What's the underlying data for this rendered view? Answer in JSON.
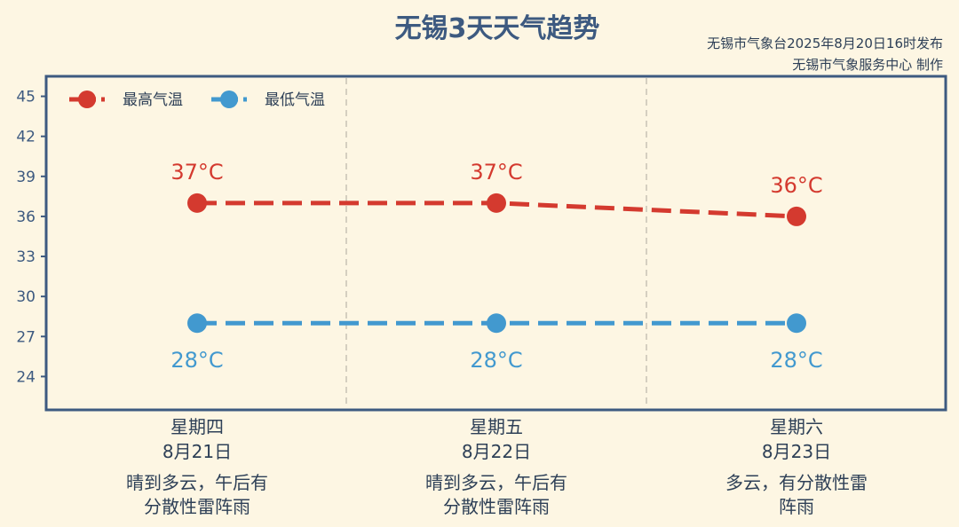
{
  "title": "无锡3天天气趋势",
  "source_line1": "无锡市气象台2025年8月20日16时发布",
  "source_line2": "无锡市气象服务中心 制作",
  "colors": {
    "background": "#fdf6e3",
    "axis": "#3d5a80",
    "high": "#d43a2f",
    "low": "#4299cf",
    "divider": "#c8c2b5"
  },
  "chart_data": {
    "type": "line",
    "ylim": [
      21.5,
      46.5
    ],
    "yticks": [
      24,
      27,
      30,
      33,
      36,
      39,
      42,
      45
    ],
    "grid": false,
    "legend_position": "top-left",
    "categories": [
      {
        "day": "星期四",
        "date": "8月21日",
        "weather_line1": "晴到多云，午后有",
        "weather_line2": "分散性雷阵雨"
      },
      {
        "day": "星期五",
        "date": "8月22日",
        "weather_line1": "晴到多云，午后有",
        "weather_line2": "分散性雷阵雨"
      },
      {
        "day": "星期六",
        "date": "8月23日",
        "weather_line1": "多云，有分散性雷",
        "weather_line2": "阵雨"
      }
    ],
    "series": [
      {
        "name": "最高气温",
        "values": [
          37,
          37,
          36
        ],
        "labels": [
          "37°C",
          "37°C",
          "36°C"
        ]
      },
      {
        "name": "最低气温",
        "values": [
          28,
          28,
          28
        ],
        "labels": [
          "28°C",
          "28°C",
          "28°C"
        ]
      }
    ]
  }
}
